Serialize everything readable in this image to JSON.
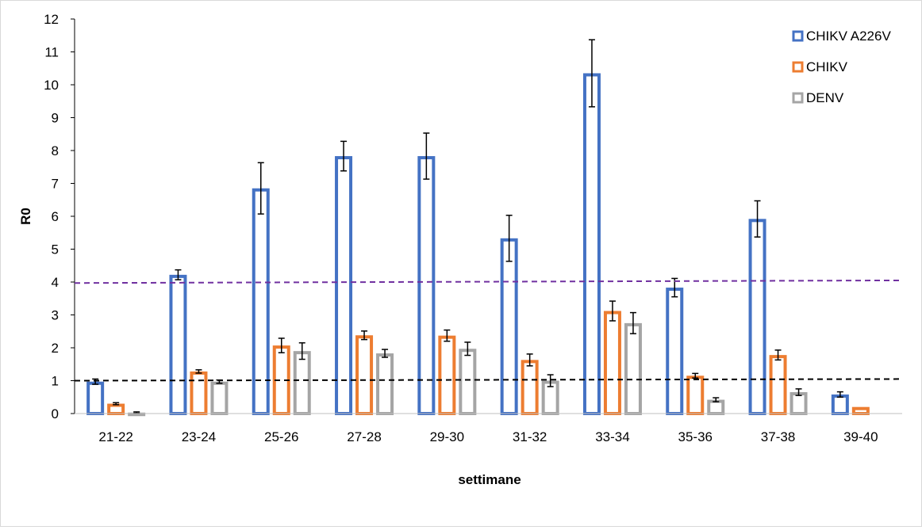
{
  "chart_data": {
    "type": "bar",
    "title": "",
    "xlabel": "settimane",
    "ylabel": "R0",
    "ylim": [
      0,
      12
    ],
    "yticks": [
      0,
      1,
      2,
      3,
      4,
      5,
      6,
      7,
      8,
      9,
      10,
      11,
      12
    ],
    "grid": false,
    "legend_position": "top-right",
    "categories": [
      "21-22",
      "23-24",
      "25-26",
      "27-28",
      "29-30",
      "31-32",
      "33-34",
      "35-36",
      "37-38",
      "39-40"
    ],
    "series": [
      {
        "name": "CHIKV A226V",
        "color": "#4472c4",
        "values": [
          0.97,
          4.22,
          6.85,
          7.83,
          7.83,
          5.33,
          10.35,
          3.83,
          5.92,
          0.58
        ],
        "errors": [
          0.08,
          0.15,
          0.78,
          0.45,
          0.7,
          0.7,
          1.02,
          0.28,
          0.55,
          0.08
        ]
      },
      {
        "name": "CHIKV",
        "color": "#ed7d31",
        "values": [
          0.3,
          1.28,
          2.07,
          2.38,
          2.37,
          1.63,
          3.12,
          1.15,
          1.78,
          0.2
        ],
        "errors": [
          0.03,
          0.05,
          0.22,
          0.13,
          0.17,
          0.18,
          0.3,
          0.07,
          0.15,
          0.02
        ],
        "has_error_bars": [
          true,
          true,
          true,
          true,
          true,
          true,
          true,
          true,
          true,
          false
        ]
      },
      {
        "name": "DENV",
        "color": "#a5a5a5",
        "values": [
          0.03,
          0.97,
          1.9,
          1.83,
          1.97,
          1.0,
          2.75,
          0.42,
          0.65,
          null
        ],
        "errors": [
          0.02,
          0.05,
          0.25,
          0.12,
          0.2,
          0.18,
          0.32,
          0.06,
          0.1,
          null
        ]
      }
    ],
    "reference_lines": [
      {
        "style": "dashed",
        "color": "#7030a0",
        "y_start": 3.97,
        "y_end": 4.05
      },
      {
        "style": "dashed",
        "color": "#000000",
        "y_start": 1.0,
        "y_end": 1.05
      }
    ]
  }
}
